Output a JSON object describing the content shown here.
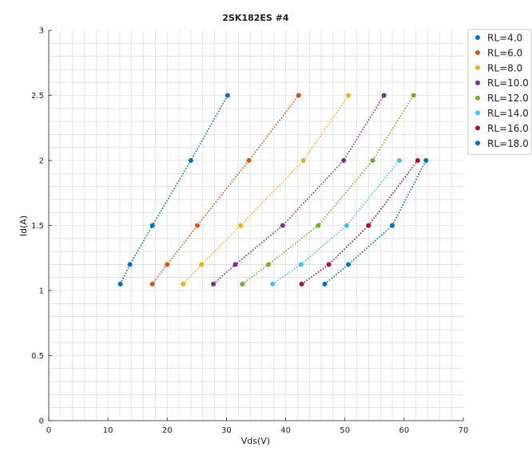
{
  "chart_data": {
    "type": "scatter",
    "title": "2SK182ES #4",
    "xlabel": "Vds(V)",
    "ylabel": "Id(A)",
    "xlim": [
      0,
      70
    ],
    "ylim": [
      0,
      3
    ],
    "x_ticks": [
      0,
      10,
      20,
      30,
      40,
      50,
      60,
      70
    ],
    "y_ticks": [
      0,
      0.5,
      1,
      1.5,
      2,
      2.5,
      3
    ],
    "x_tick_labels": [
      "0",
      "10",
      "20",
      "30",
      "40",
      "50",
      "60",
      "70"
    ],
    "y_tick_labels": [
      "0",
      "0.5",
      "1",
      "1.5",
      "2",
      "2.5",
      "3"
    ],
    "grid": true,
    "legend_position": "right",
    "lines": "dotted",
    "series": [
      {
        "name": "RL=4.0",
        "color": "#0072bd",
        "points": [
          [
            12.1,
            1.05
          ],
          [
            13.7,
            1.2
          ],
          [
            17.5,
            1.5
          ],
          [
            24.0,
            2.0
          ],
          [
            30.2,
            2.5
          ]
        ]
      },
      {
        "name": "RL=6.0",
        "color": "#d95319",
        "points": [
          [
            17.5,
            1.05
          ],
          [
            20.0,
            1.2
          ],
          [
            25.1,
            1.5
          ],
          [
            33.8,
            2.0
          ],
          [
            42.2,
            2.5
          ]
        ]
      },
      {
        "name": "RL=8.0",
        "color": "#edb120",
        "points": [
          [
            22.7,
            1.05
          ],
          [
            25.8,
            1.2
          ],
          [
            32.4,
            1.5
          ],
          [
            43.0,
            2.0
          ],
          [
            50.6,
            2.5
          ]
        ]
      },
      {
        "name": "RL=10.0",
        "color": "#7e2f8e",
        "points": [
          [
            27.8,
            1.05
          ],
          [
            31.5,
            1.2
          ],
          [
            39.5,
            1.5
          ],
          [
            49.8,
            2.0
          ],
          [
            56.6,
            2.5
          ]
        ]
      },
      {
        "name": "RL=12.0",
        "color": "#77ac30",
        "points": [
          [
            32.7,
            1.05
          ],
          [
            37.1,
            1.2
          ],
          [
            45.5,
            1.5
          ],
          [
            54.7,
            2.0
          ],
          [
            61.6,
            2.5
          ]
        ]
      },
      {
        "name": "RL=14.0",
        "color": "#4dbeee",
        "points": [
          [
            37.8,
            1.05
          ],
          [
            42.6,
            1.2
          ],
          [
            50.3,
            1.5
          ],
          [
            59.2,
            2.0
          ]
        ]
      },
      {
        "name": "RL=16.0",
        "color": "#a2142f",
        "points": [
          [
            42.7,
            1.05
          ],
          [
            47.3,
            1.2
          ],
          [
            54.0,
            1.5
          ],
          [
            62.3,
            2.0
          ]
        ]
      },
      {
        "name": "RL=18.0",
        "color": "#0072bd",
        "points": [
          [
            46.6,
            1.05
          ],
          [
            50.6,
            1.2
          ],
          [
            58.0,
            1.5
          ],
          [
            63.7,
            2.0
          ]
        ]
      }
    ]
  }
}
